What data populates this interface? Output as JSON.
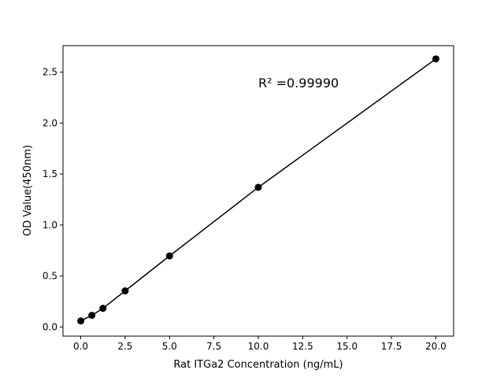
{
  "chart_data": {
    "type": "scatter",
    "title": "",
    "xlabel": "Rat ITGa2 Concentration (ng/mL)",
    "ylabel": "OD Value(450nm)",
    "xlim": [
      -1,
      21
    ],
    "ylim": [
      -0.09,
      2.76
    ],
    "xticks": [
      "0.0",
      "2.5",
      "5.0",
      "7.5",
      "10.0",
      "12.5",
      "15.0",
      "17.5",
      "20.0"
    ],
    "yticks": [
      "0.0",
      "0.5",
      "1.0",
      "1.5",
      "2.0",
      "2.5"
    ],
    "grid": false,
    "series": [
      {
        "x": [
          0,
          0.625,
          1.25,
          2.5,
          5,
          10,
          20
        ],
        "y": [
          0.059,
          0.114,
          0.183,
          0.354,
          0.697,
          1.37,
          2.63
        ],
        "marker": "circle",
        "line": true,
        "color": "#000000"
      }
    ],
    "annotation": {
      "text": "R² =0.99990",
      "x": 10,
      "y": 2.35
    }
  }
}
